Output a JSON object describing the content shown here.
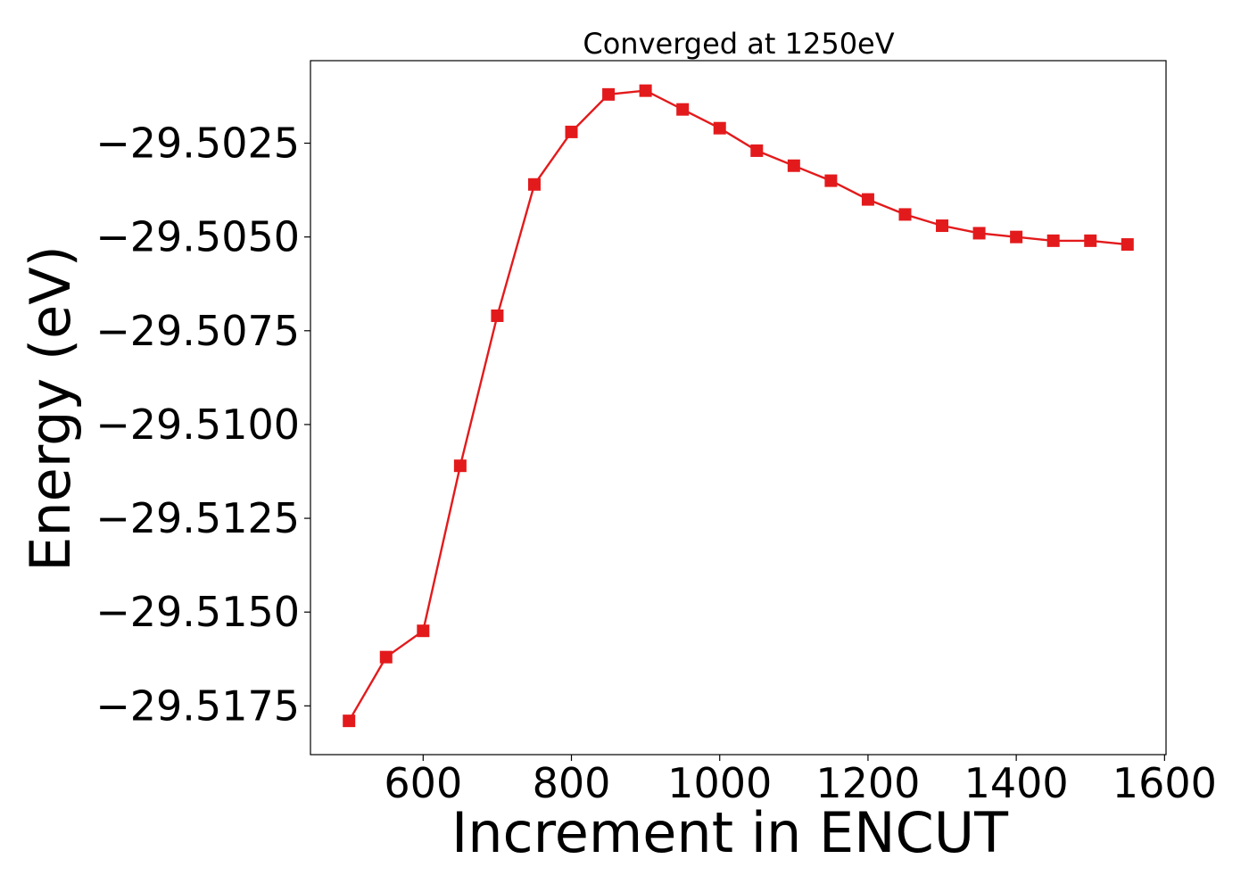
{
  "chart_data": {
    "type": "line",
    "title": "Converged at 1250eV",
    "xlabel": "Increment in ENCUT",
    "ylabel": "Energy (eV)",
    "xlim": [
      448,
      1602
    ],
    "ylim": [
      -29.5188,
      -29.5003
    ],
    "xticks": [
      600,
      800,
      1000,
      1200,
      1400,
      1600
    ],
    "xtick_labels": [
      "600",
      "800",
      "1000",
      "1200",
      "1400",
      "1600"
    ],
    "yticks": [
      -29.5025,
      -29.505,
      -29.5075,
      -29.51,
      -29.5125,
      -29.515,
      -29.5175
    ],
    "ytick_labels": [
      "−29.5025",
      "−29.5050",
      "−29.5075",
      "−29.5100",
      "−29.5125",
      "−29.5150",
      "−29.5175"
    ],
    "grid": false,
    "marker": "square",
    "series": [
      {
        "color": "#e31a1c",
        "x": [
          500,
          550,
          600,
          650,
          700,
          750,
          800,
          850,
          900,
          950,
          1000,
          1050,
          1100,
          1150,
          1200,
          1250,
          1300,
          1350,
          1400,
          1450,
          1500,
          1550
        ],
        "y": [
          -29.5179,
          -29.5162,
          -29.5155,
          -29.5111,
          -29.5071,
          -29.5036,
          -29.5022,
          -29.5012,
          -29.5011,
          -29.5016,
          -29.5021,
          -29.5027,
          -29.5031,
          -29.5035,
          -29.504,
          -29.5044,
          -29.5047,
          -29.5049,
          -29.505,
          -29.5051,
          -29.5051,
          -29.5052
        ]
      }
    ]
  }
}
